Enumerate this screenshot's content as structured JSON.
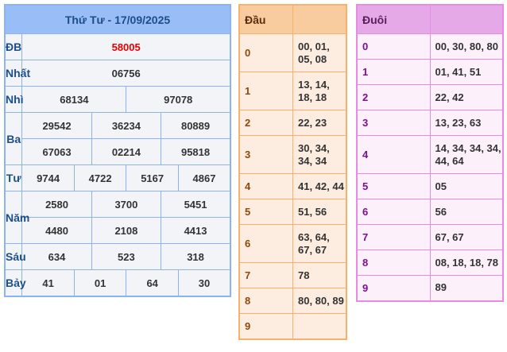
{
  "results": {
    "title": "Thứ Tư - 17/09/2025",
    "rows": [
      {
        "label": "ĐB",
        "values": [
          "58005"
        ]
      },
      {
        "label": "Nhất",
        "values": [
          "06756"
        ]
      },
      {
        "label": "Nhì",
        "values": [
          "68134",
          "97078"
        ]
      },
      {
        "label": "Ba",
        "values": [
          "29542",
          "36234",
          "80889",
          "67063",
          "02214",
          "95818"
        ]
      },
      {
        "label": "Tư",
        "values": [
          "9744",
          "4722",
          "5167",
          "4867"
        ]
      },
      {
        "label": "Năm",
        "values": [
          "2580",
          "3700",
          "5451",
          "4480",
          "2108",
          "4413"
        ]
      },
      {
        "label": "Sáu",
        "values": [
          "634",
          "523",
          "318"
        ]
      },
      {
        "label": "Bảy",
        "values": [
          "41",
          "01",
          "64",
          "30"
        ]
      }
    ]
  },
  "dau": {
    "header": "Đầu",
    "rows": [
      {
        "k": "0",
        "v": "00, 01, 05, 08"
      },
      {
        "k": "1",
        "v": "13, 14, 18, 18"
      },
      {
        "k": "2",
        "v": "22, 23"
      },
      {
        "k": "3",
        "v": "30, 34, 34, 34"
      },
      {
        "k": "4",
        "v": "41, 42, 44"
      },
      {
        "k": "5",
        "v": "51, 56"
      },
      {
        "k": "6",
        "v": "63, 64, 67, 67"
      },
      {
        "k": "7",
        "v": "78"
      },
      {
        "k": "8",
        "v": "80, 80, 89"
      },
      {
        "k": "9",
        "v": ""
      }
    ]
  },
  "duoi": {
    "header": "Đuôi",
    "rows": [
      {
        "k": "0",
        "v": "00, 30, 80, 80"
      },
      {
        "k": "1",
        "v": "01, 41, 51"
      },
      {
        "k": "2",
        "v": "22, 42"
      },
      {
        "k": "3",
        "v": "13, 23, 63"
      },
      {
        "k": "4",
        "v": "14, 34, 34, 34, 44, 64"
      },
      {
        "k": "5",
        "v": "05"
      },
      {
        "k": "6",
        "v": "56"
      },
      {
        "k": "7",
        "v": "67, 67"
      },
      {
        "k": "8",
        "v": "08, 18, 18, 78"
      },
      {
        "k": "9",
        "v": "89"
      }
    ]
  }
}
